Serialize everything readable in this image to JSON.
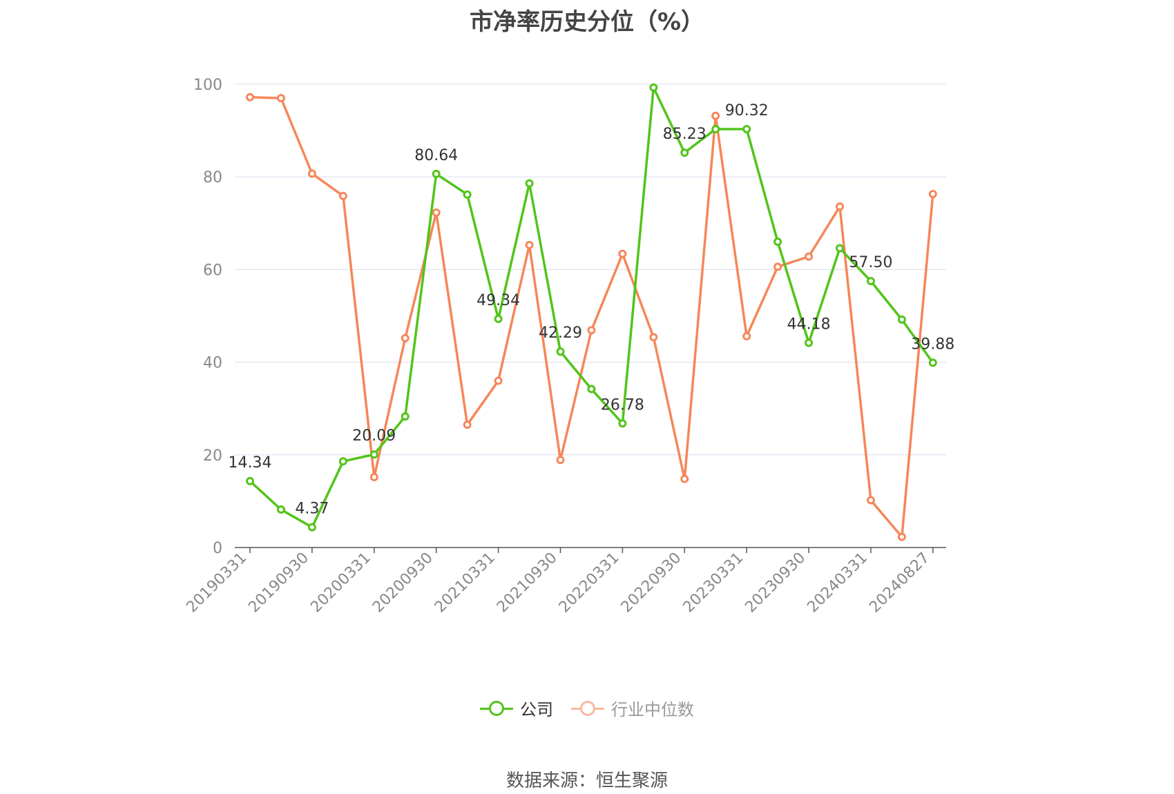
{
  "chart_data": {
    "type": "line",
    "title": "市净率历史分位（%）",
    "ylim": [
      0,
      100
    ],
    "yticks": [
      0,
      20,
      40,
      60,
      80,
      100
    ],
    "x": [
      "20190331",
      "20190630",
      "20190930",
      "20191231",
      "20200331",
      "20200630",
      "20200930",
      "20201231",
      "20210331",
      "20210630",
      "20210930",
      "20211231",
      "20220331",
      "20220630",
      "20220930",
      "20221231",
      "20230331",
      "20230630",
      "20230930",
      "20231231",
      "20240331",
      "20240630",
      "20240827"
    ],
    "x_tick_labels": [
      "20190331",
      "20190930",
      "20200331",
      "20200930",
      "20210331",
      "20210930",
      "20220331",
      "20220930",
      "20230331",
      "20230930",
      "20240331",
      "20240827"
    ],
    "grid": true,
    "legend_position": "bottom",
    "series": [
      {
        "name": "公司",
        "color": "#52c41a",
        "values": [
          14.34,
          8.2,
          4.37,
          18.6,
          20.09,
          28.3,
          80.64,
          76.2,
          49.34,
          78.6,
          42.29,
          34.2,
          26.78,
          99.3,
          85.23,
          90.32,
          90.32,
          66.0,
          44.18,
          64.6,
          57.5,
          49.2,
          39.88
        ],
        "labels": {
          "0": "14.34",
          "2": "4.37",
          "4": "20.09",
          "6": "80.64",
          "8": "49.34",
          "10": "42.29",
          "12": "26.78",
          "14": "85.23",
          "16": "90.32",
          "18": "44.18",
          "20": "57.50",
          "22": "39.88"
        }
      },
      {
        "name": "行业中位数",
        "color": "#f5875a",
        "values": [
          97.2,
          97.0,
          80.7,
          75.9,
          15.2,
          45.2,
          72.3,
          26.5,
          36.0,
          65.3,
          18.9,
          46.9,
          63.4,
          45.4,
          14.8,
          93.2,
          45.6,
          60.6,
          62.8,
          73.6,
          10.2,
          2.3,
          76.3
        ]
      }
    ]
  },
  "legend": {
    "company": "公司",
    "industry": "行业中位数"
  },
  "source": "数据来源：恒生聚源"
}
